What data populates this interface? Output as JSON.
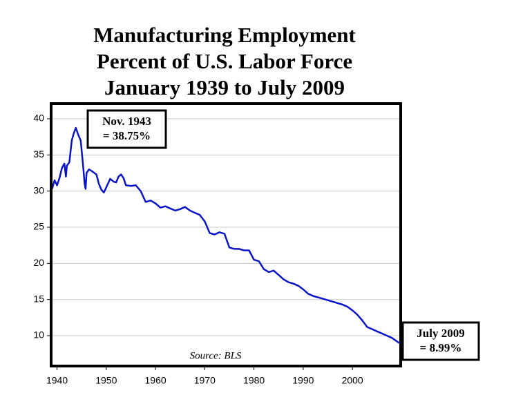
{
  "chart_data": {
    "type": "line",
    "title": [
      "Manufacturing Employment",
      "Percent of U.S. Labor Force",
      "January 1939 to July 2009"
    ],
    "annotations": [
      [
        "Nov. 1943",
        "= 38.75%"
      ],
      [
        "July 2009",
        "= 8.99%"
      ]
    ],
    "source": "Source: BLS",
    "color": "#0a14c8",
    "x": [
      1939.0,
      1939.5,
      1940,
      1940.5,
      1941,
      1941.5,
      1941.8,
      1942,
      1942.5,
      1943,
      1943.4,
      1943.83,
      1944.3,
      1944.8,
      1945.3,
      1945.6,
      1945.8,
      1946,
      1946.5,
      1947,
      1948,
      1948.5,
      1949,
      1949.5,
      1950,
      1950.8,
      1951.5,
      1952,
      1952.5,
      1953,
      1953.5,
      1954,
      1955,
      1956,
      1957,
      1958,
      1959,
      1960,
      1961,
      1962,
      1963,
      1964,
      1965,
      1966,
      1967,
      1968,
      1969,
      1970,
      1971,
      1972,
      1973,
      1974,
      1975,
      1976,
      1977,
      1978,
      1979,
      1980,
      1981,
      1982,
      1983,
      1984,
      1985,
      1986,
      1987,
      1988,
      1989,
      1990,
      1991,
      1992,
      1993,
      1994,
      1995,
      1996,
      1997,
      1998,
      1999,
      2000,
      2001,
      2002,
      2003,
      2004,
      2005,
      2006,
      2007,
      2008,
      2009.5
    ],
    "values": [
      30.3,
      31.5,
      30.8,
      31.8,
      33.2,
      33.8,
      32,
      33.5,
      34,
      37,
      38,
      38.75,
      37.8,
      37,
      33.5,
      31,
      30.3,
      32.5,
      33,
      32.8,
      32.3,
      31,
      30.2,
      29.8,
      30.5,
      31.7,
      31.3,
      31.2,
      32,
      32.3,
      31.8,
      30.8,
      30.7,
      30.8,
      30,
      28.5,
      28.7,
      28.3,
      27.7,
      27.9,
      27.6,
      27.3,
      27.5,
      27.8,
      27.3,
      27,
      26.7,
      25.8,
      24.2,
      24,
      24.3,
      24.1,
      22.2,
      22,
      22,
      21.8,
      21.8,
      20.5,
      20.3,
      19.2,
      18.8,
      19,
      18.4,
      17.8,
      17.4,
      17.2,
      16.9,
      16.4,
      15.8,
      15.5,
      15.3,
      15.1,
      14.9,
      14.7,
      14.5,
      14.3,
      14,
      13.5,
      12.9,
      12.1,
      11.2,
      10.9,
      10.6,
      10.3,
      10,
      9.7,
      8.99
    ],
    "xlim": [
      1938.8,
      2009.8
    ],
    "xticks": [
      1940,
      1950,
      1960,
      1970,
      1980,
      1990,
      2000
    ],
    "ylim": [
      5.8,
      42.1
    ],
    "yticks": [
      10,
      15,
      20,
      25,
      30,
      35,
      40
    ],
    "grid": true
  }
}
